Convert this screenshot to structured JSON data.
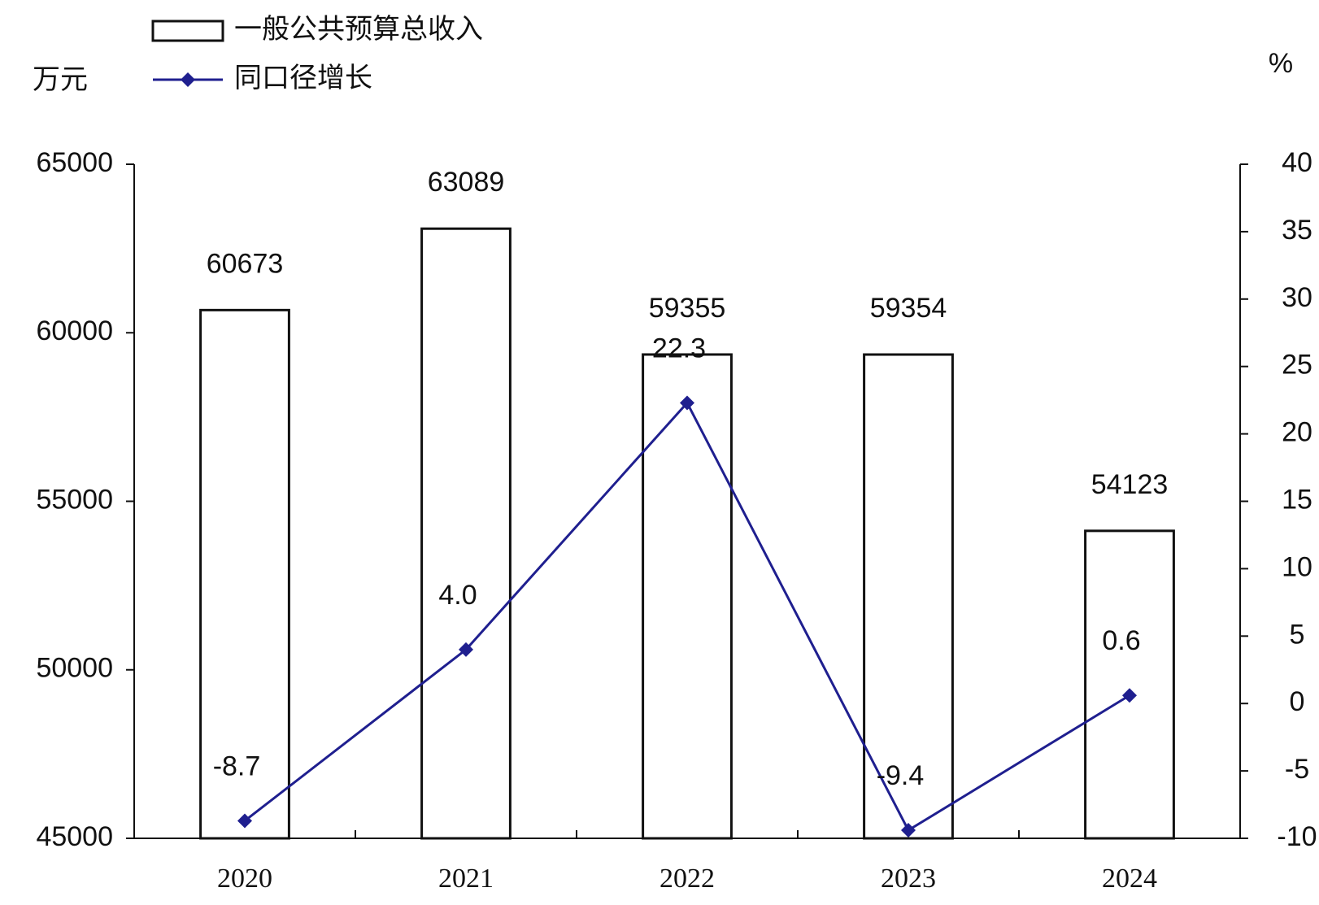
{
  "chart_data": {
    "type": "bar",
    "ylabel": "万元",
    "y2label": "%",
    "categories": [
      "2020",
      "2021",
      "2022",
      "2023",
      "2024"
    ],
    "series": [
      {
        "name": "一般公共预算总收入",
        "type": "bar",
        "color": "#ffffff",
        "values": [
          60673,
          63089,
          59355,
          59354,
          54123
        ]
      },
      {
        "name": "同口径增长",
        "type": "line",
        "axis": "y2",
        "color": "#1f1f8f",
        "values": [
          -8.7,
          4.0,
          22.3,
          -9.4,
          0.6
        ],
        "value_labels": [
          "-8.7",
          "4.0",
          "22.3",
          "-9.4",
          "0.6"
        ]
      }
    ],
    "ylim": [
      45000,
      65000
    ],
    "yticks": [
      45000,
      50000,
      55000,
      60000,
      65000
    ],
    "y2lim": [
      -10,
      40
    ],
    "y2ticks": [
      -10,
      -5,
      0,
      5,
      10,
      15,
      20,
      25,
      30,
      35,
      40
    ],
    "grid": false,
    "legend": "top-left"
  }
}
